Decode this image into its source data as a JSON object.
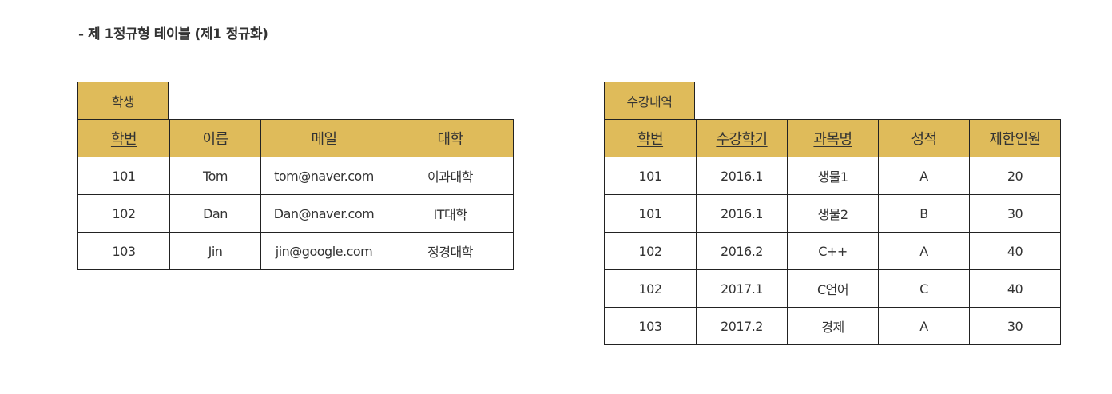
{
  "heading": "- 제 1정규형 테이블 (제1 정규화)",
  "student_table": {
    "name": "학생",
    "columns": [
      {
        "label": "학번",
        "key": true
      },
      {
        "label": "이름",
        "key": false
      },
      {
        "label": "메일",
        "key": false
      },
      {
        "label": "대학",
        "key": false
      }
    ],
    "rows": [
      [
        "101",
        "Tom",
        "tom@naver.com",
        "이과대학"
      ],
      [
        "102",
        "Dan",
        "Dan@naver.com",
        "IT대학"
      ],
      [
        "103",
        "Jin",
        "jin@google.com",
        "정경대학"
      ]
    ]
  },
  "enrollment_table": {
    "name": "수강내역",
    "columns": [
      {
        "label": "학번",
        "key": true
      },
      {
        "label": "수강학기",
        "key": true
      },
      {
        "label": "과목명",
        "key": true
      },
      {
        "label": "성적",
        "key": false
      },
      {
        "label": "제한인원",
        "key": false
      }
    ],
    "rows": [
      [
        "101",
        "2016.1",
        "생물1",
        "A",
        "20"
      ],
      [
        "101",
        "2016.1",
        "생물2",
        "B",
        "30"
      ],
      [
        "102",
        "2016.2",
        "C++",
        "A",
        "40"
      ],
      [
        "102",
        "2017.1",
        "C언어",
        "C",
        "40"
      ],
      [
        "103",
        "2017.2",
        "경제",
        "A",
        "30"
      ]
    ]
  },
  "colors": {
    "header_background": "#dfbb5a",
    "border": "#222222",
    "text": "#333333"
  }
}
